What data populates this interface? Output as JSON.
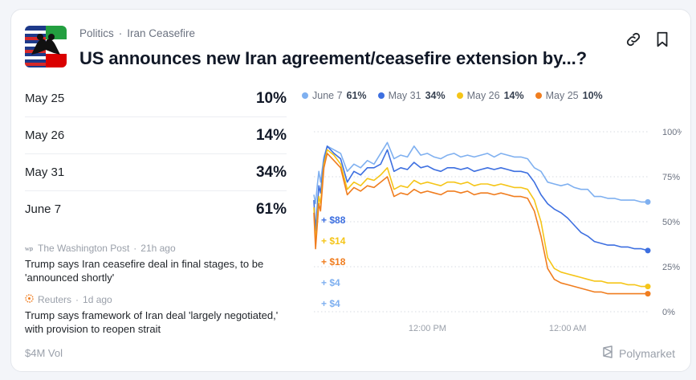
{
  "header": {
    "category": "Politics",
    "separator": "·",
    "subcategory": "Iran Ceasefire",
    "title": "US announces new Iran agreement/ceasefire extension by...?",
    "icons": [
      "link-icon",
      "bookmark-icon"
    ]
  },
  "outcomes": [
    {
      "label": "May 25",
      "pct": "10%"
    },
    {
      "label": "May 26",
      "pct": "14%"
    },
    {
      "label": "May 31",
      "pct": "34%"
    },
    {
      "label": "June 7",
      "pct": "61%"
    }
  ],
  "news": [
    {
      "source": "The Washington Post",
      "sep": "·",
      "time": "21h ago",
      "title": "Trump says Iran ceasefire deal in final stages, to be 'announced shortly'"
    },
    {
      "source": "Reuters",
      "sep": "·",
      "time": "1d ago",
      "title": "Trump says framework of Iran deal 'largely negotiated,' with provision to reopen strait"
    }
  ],
  "footer": {
    "volume": "$4M Vol",
    "brand": "Polymarket"
  },
  "colors": {
    "june7": "#7fb0f0",
    "may31": "#3d6fe0",
    "may26": "#f5c518",
    "may25": "#f07d1f"
  },
  "chart_data": {
    "type": "line",
    "y_ticks": [
      "100%",
      "75%",
      "50%",
      "25%",
      "0%"
    ],
    "ylim": [
      0,
      100
    ],
    "x_tick_labels": [
      "12:00 PM",
      "12:00 AM"
    ],
    "grid": true,
    "legend_position": "top",
    "legend": [
      {
        "name": "June 7",
        "value": "61%",
        "color": "#7fb0f0"
      },
      {
        "name": "May 31",
        "value": "34%",
        "color": "#3d6fe0"
      },
      {
        "name": "May 26",
        "value": "14%",
        "color": "#f5c518"
      },
      {
        "name": "May 25",
        "value": "10%",
        "color": "#f07d1f"
      }
    ],
    "trade_annotations": [
      {
        "text": "+ $88",
        "color": "#3d6fe0"
      },
      {
        "text": "+ $14",
        "color": "#f5c518"
      },
      {
        "text": "+ $18",
        "color": "#f07d1f"
      },
      {
        "text": "+ $4",
        "color": "#7fb0f0"
      },
      {
        "text": "+ $4",
        "color": "#7fb0f0"
      }
    ],
    "series": [
      {
        "name": "June 7",
        "color": "#7fb0f0",
        "x": [
          0,
          0.5,
          1,
          1.5,
          2,
          3,
          4,
          6,
          8,
          10,
          12,
          14,
          16,
          18,
          20,
          22,
          24,
          26,
          28,
          30,
          32,
          34,
          36,
          38,
          40,
          42,
          44,
          46,
          48,
          50,
          52,
          54,
          56,
          58,
          60,
          62,
          64,
          66,
          68,
          70,
          72,
          74,
          76,
          78,
          80,
          82,
          84,
          86,
          88,
          90,
          92,
          94,
          96,
          98,
          100
        ],
        "y": [
          65,
          60,
          70,
          78,
          72,
          86,
          92,
          90,
          88,
          78,
          82,
          80,
          84,
          82,
          88,
          94,
          85,
          87,
          86,
          92,
          87,
          88,
          86,
          85,
          87,
          88,
          86,
          87,
          86,
          87,
          88,
          86,
          88,
          87,
          86,
          86,
          85,
          80,
          78,
          72,
          71,
          70,
          71,
          69,
          68,
          68,
          64,
          64,
          63,
          63,
          62,
          62,
          62,
          61,
          61
        ]
      },
      {
        "name": "May 31",
        "color": "#3d6fe0",
        "x": [
          0,
          0.5,
          1,
          1.5,
          2,
          3,
          4,
          6,
          8,
          10,
          12,
          14,
          16,
          18,
          20,
          22,
          24,
          26,
          28,
          30,
          32,
          34,
          36,
          38,
          40,
          42,
          44,
          46,
          48,
          50,
          52,
          54,
          56,
          58,
          60,
          62,
          64,
          66,
          68,
          70,
          72,
          74,
          76,
          78,
          80,
          82,
          84,
          86,
          88,
          90,
          92,
          94,
          96,
          98,
          100
        ],
        "y": [
          62,
          45,
          58,
          70,
          66,
          84,
          92,
          88,
          85,
          72,
          78,
          76,
          80,
          80,
          82,
          90,
          78,
          80,
          79,
          83,
          80,
          81,
          79,
          78,
          80,
          80,
          79,
          80,
          78,
          79,
          80,
          79,
          80,
          79,
          78,
          78,
          77,
          72,
          65,
          60,
          57,
          55,
          52,
          48,
          44,
          42,
          39,
          38,
          37,
          37,
          36,
          36,
          35,
          35,
          34
        ]
      },
      {
        "name": "May 26",
        "color": "#f5c518",
        "x": [
          0,
          0.5,
          1,
          1.5,
          2,
          3,
          4,
          6,
          8,
          10,
          12,
          14,
          16,
          18,
          20,
          22,
          24,
          26,
          28,
          30,
          32,
          34,
          36,
          38,
          40,
          42,
          44,
          46,
          48,
          50,
          52,
          54,
          56,
          58,
          60,
          62,
          64,
          66,
          68,
          70,
          72,
          74,
          76,
          78,
          80,
          82,
          84,
          86,
          88,
          90,
          92,
          94,
          96,
          98,
          100
        ],
        "y": [
          58,
          38,
          52,
          64,
          60,
          82,
          90,
          87,
          82,
          68,
          72,
          70,
          74,
          73,
          76,
          80,
          68,
          70,
          69,
          73,
          71,
          72,
          71,
          70,
          72,
          72,
          71,
          72,
          70,
          71,
          71,
          70,
          71,
          70,
          69,
          69,
          68,
          62,
          50,
          30,
          24,
          22,
          21,
          20,
          19,
          18,
          17,
          17,
          16,
          16,
          16,
          15,
          15,
          14,
          14
        ]
      },
      {
        "name": "May 25",
        "color": "#f07d1f",
        "x": [
          0,
          0.5,
          1,
          1.5,
          2,
          3,
          4,
          6,
          8,
          10,
          12,
          14,
          16,
          18,
          20,
          22,
          24,
          26,
          28,
          30,
          32,
          34,
          36,
          38,
          40,
          42,
          44,
          46,
          48,
          50,
          52,
          54,
          56,
          58,
          60,
          62,
          64,
          66,
          68,
          70,
          72,
          74,
          76,
          78,
          80,
          82,
          84,
          86,
          88,
          90,
          92,
          94,
          96,
          98,
          100
        ],
        "y": [
          55,
          35,
          48,
          60,
          56,
          80,
          88,
          84,
          80,
          65,
          69,
          67,
          70,
          69,
          72,
          75,
          64,
          66,
          65,
          68,
          66,
          67,
          66,
          65,
          67,
          67,
          66,
          67,
          65,
          66,
          66,
          65,
          66,
          65,
          64,
          64,
          63,
          56,
          42,
          24,
          18,
          16,
          15,
          14,
          13,
          12,
          11,
          11,
          10,
          10,
          10,
          10,
          10,
          10,
          10
        ]
      }
    ]
  }
}
